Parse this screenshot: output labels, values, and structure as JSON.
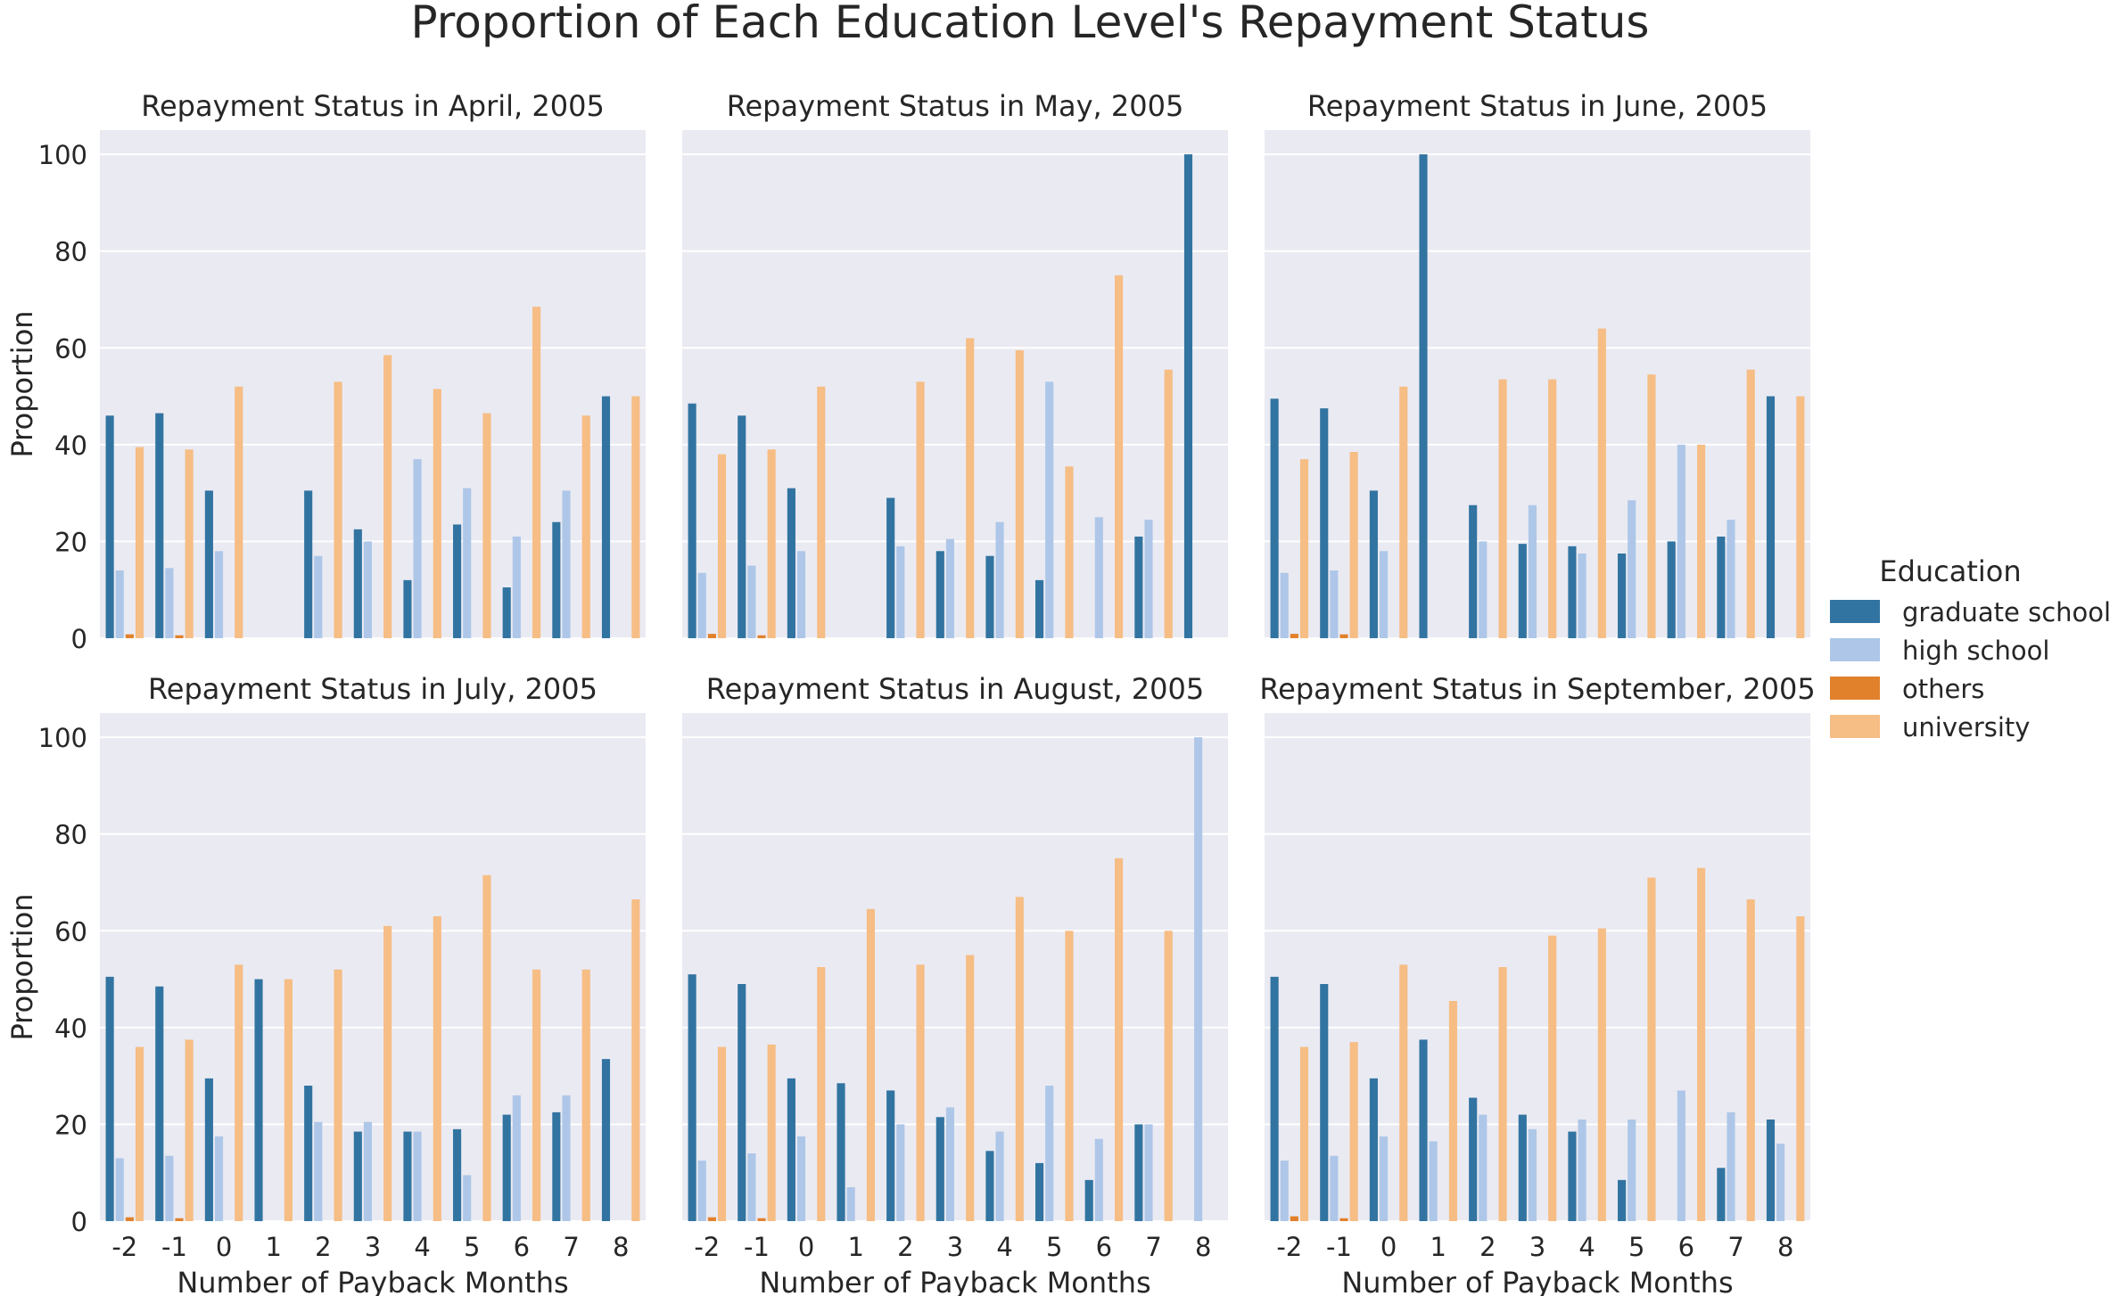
{
  "figure": {
    "title": "Proportion of Each Education Level's Repayment Status"
  },
  "legend": {
    "title": "Education",
    "placement": "right-center"
  },
  "colors": {
    "graduate school": "#3274a1",
    "high school": "#aec7e8",
    "others": "#e1812c",
    "university": "#f6bd85",
    "panel_background": "#eaeaf2",
    "grid": "#ffffff"
  },
  "chart_data": [
    {
      "type": "bar",
      "title": "Repayment Status in April, 2005",
      "xlabel": "",
      "ylabel": "Proportion",
      "categories": [
        "-2",
        "-1",
        "0",
        "1",
        "2",
        "3",
        "4",
        "5",
        "6",
        "7",
        "8"
      ],
      "ylim": [
        0,
        105
      ],
      "yticks": [
        0,
        20,
        40,
        60,
        80,
        100
      ],
      "grid": true,
      "series": [
        {
          "name": "graduate school",
          "values": [
            46,
            46.5,
            30.5,
            0,
            30.5,
            22.5,
            12,
            23.5,
            10.5,
            24,
            50
          ]
        },
        {
          "name": "high school",
          "values": [
            14,
            14.5,
            18,
            0,
            17,
            20,
            37,
            31,
            21,
            30.5,
            0
          ]
        },
        {
          "name": "others",
          "values": [
            0.8,
            0.6,
            0,
            0,
            0,
            0,
            0,
            0,
            0,
            0,
            0
          ]
        },
        {
          "name": "university",
          "values": [
            39.5,
            39,
            52,
            0,
            53,
            58.5,
            51.5,
            46.5,
            68.5,
            46,
            50
          ]
        }
      ]
    },
    {
      "type": "bar",
      "title": "Repayment Status in May, 2005",
      "xlabel": "",
      "ylabel": "",
      "categories": [
        "-2",
        "-1",
        "0",
        "1",
        "2",
        "3",
        "4",
        "5",
        "6",
        "7",
        "8"
      ],
      "ylim": [
        0,
        105
      ],
      "yticks": [
        0,
        20,
        40,
        60,
        80,
        100
      ],
      "grid": true,
      "series": [
        {
          "name": "graduate school",
          "values": [
            48.5,
            46,
            31,
            0,
            29,
            18,
            17,
            12,
            0,
            21,
            100
          ]
        },
        {
          "name": "high school",
          "values": [
            13.5,
            15,
            18,
            0,
            19,
            20.5,
            24,
            53,
            25,
            24.5,
            0
          ]
        },
        {
          "name": "others",
          "values": [
            0.9,
            0.6,
            0,
            0,
            0,
            0,
            0,
            0,
            0,
            0,
            0
          ]
        },
        {
          "name": "university",
          "values": [
            38,
            39,
            52,
            0,
            53,
            62,
            59.5,
            35.5,
            75,
            55.5,
            0
          ]
        }
      ]
    },
    {
      "type": "bar",
      "title": "Repayment Status in June, 2005",
      "xlabel": "",
      "ylabel": "",
      "categories": [
        "-2",
        "-1",
        "0",
        "1",
        "2",
        "3",
        "4",
        "5",
        "6",
        "7",
        "8"
      ],
      "ylim": [
        0,
        105
      ],
      "yticks": [
        0,
        20,
        40,
        60,
        80,
        100
      ],
      "grid": true,
      "series": [
        {
          "name": "graduate school",
          "values": [
            49.5,
            47.5,
            30.5,
            100,
            27.5,
            19.5,
            19,
            17.5,
            20,
            21,
            50
          ]
        },
        {
          "name": "high school",
          "values": [
            13.5,
            14,
            18,
            0,
            20,
            27.5,
            17.5,
            28.5,
            40,
            24.5,
            0
          ]
        },
        {
          "name": "others",
          "values": [
            0.9,
            0.8,
            0,
            0,
            0,
            0,
            0,
            0,
            0,
            0,
            0
          ]
        },
        {
          "name": "university",
          "values": [
            37,
            38.5,
            52,
            0,
            53.5,
            53.5,
            64,
            54.5,
            40,
            55.5,
            50
          ]
        }
      ]
    },
    {
      "type": "bar",
      "title": "Repayment Status in July, 2005",
      "xlabel": "Number of Payback Months",
      "ylabel": "Proportion",
      "categories": [
        "-2",
        "-1",
        "0",
        "1",
        "2",
        "3",
        "4",
        "5",
        "6",
        "7",
        "8"
      ],
      "ylim": [
        0,
        105
      ],
      "yticks": [
        0,
        20,
        40,
        60,
        80,
        100
      ],
      "grid": true,
      "series": [
        {
          "name": "graduate school",
          "values": [
            50.5,
            48.5,
            29.5,
            50,
            28,
            18.5,
            18.5,
            19,
            22,
            22.5,
            33.5
          ]
        },
        {
          "name": "high school",
          "values": [
            13,
            13.5,
            17.5,
            0,
            20.5,
            20.5,
            18.5,
            9.5,
            26,
            26,
            0
          ]
        },
        {
          "name": "others",
          "values": [
            0.8,
            0.6,
            0,
            0,
            0,
            0,
            0,
            0,
            0,
            0,
            0
          ]
        },
        {
          "name": "university",
          "values": [
            36,
            37.5,
            53,
            50,
            52,
            61,
            63,
            71.5,
            52,
            52,
            66.5
          ]
        }
      ]
    },
    {
      "type": "bar",
      "title": "Repayment Status in August, 2005",
      "xlabel": "Number of Payback Months",
      "ylabel": "",
      "categories": [
        "-2",
        "-1",
        "0",
        "1",
        "2",
        "3",
        "4",
        "5",
        "6",
        "7",
        "8"
      ],
      "ylim": [
        0,
        105
      ],
      "yticks": [
        0,
        20,
        40,
        60,
        80,
        100
      ],
      "grid": true,
      "series": [
        {
          "name": "graduate school",
          "values": [
            51,
            49,
            29.5,
            28.5,
            27,
            21.5,
            14.5,
            12,
            8.5,
            20,
            0
          ]
        },
        {
          "name": "high school",
          "values": [
            12.5,
            14,
            17.5,
            7,
            20,
            23.5,
            18.5,
            28,
            17,
            20,
            100
          ]
        },
        {
          "name": "others",
          "values": [
            0.8,
            0.6,
            0,
            0,
            0,
            0,
            0,
            0,
            0,
            0,
            0
          ]
        },
        {
          "name": "university",
          "values": [
            36,
            36.5,
            52.5,
            64.5,
            53,
            55,
            67,
            60,
            75,
            60,
            0
          ]
        }
      ]
    },
    {
      "type": "bar",
      "title": "Repayment Status in September, 2005",
      "xlabel": "Number of Payback Months",
      "ylabel": "",
      "categories": [
        "-2",
        "-1",
        "0",
        "1",
        "2",
        "3",
        "4",
        "5",
        "6",
        "7",
        "8"
      ],
      "ylim": [
        0,
        105
      ],
      "yticks": [
        0,
        20,
        40,
        60,
        80,
        100
      ],
      "grid": true,
      "series": [
        {
          "name": "graduate school",
          "values": [
            50.5,
            49,
            29.5,
            37.5,
            25.5,
            22,
            18.5,
            8.5,
            0,
            11,
            21
          ]
        },
        {
          "name": "high school",
          "values": [
            12.5,
            13.5,
            17.5,
            16.5,
            22,
            19,
            21,
            21,
            27,
            22.5,
            16
          ]
        },
        {
          "name": "others",
          "values": [
            1,
            0.6,
            0,
            0,
            0,
            0,
            0,
            0,
            0,
            0,
            0
          ]
        },
        {
          "name": "university",
          "values": [
            36,
            37,
            53,
            45.5,
            52.5,
            59,
            60.5,
            71,
            73,
            66.5,
            63
          ]
        }
      ]
    }
  ]
}
